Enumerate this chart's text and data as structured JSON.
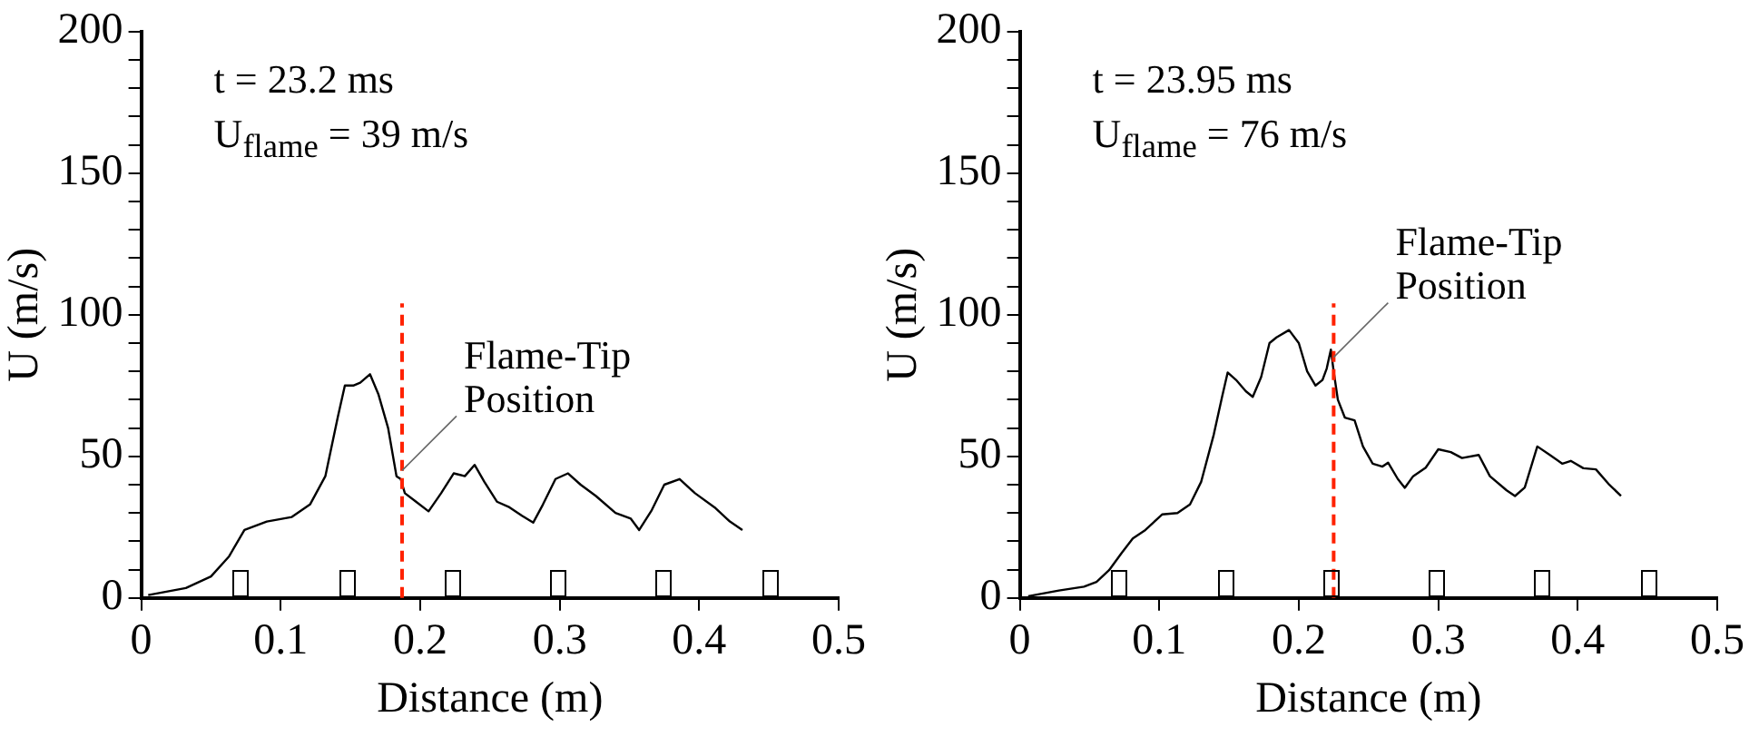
{
  "chart_data": [
    {
      "type": "line",
      "xlabel": "Distance (m)",
      "ylabel": "U (m/s)",
      "xlim": [
        0,
        0.5
      ],
      "xticks": [
        0,
        0.1,
        0.2,
        0.3,
        0.4,
        0.5
      ],
      "ylim": [
        0,
        200
      ],
      "yticks": [
        0,
        {
          "value": 10,
          "label": null
        },
        {
          "value": 20,
          "label": null
        },
        {
          "value": 30,
          "label": null
        },
        {
          "value": 40,
          "label": null
        },
        50,
        {
          "value": 60,
          "label": null
        },
        {
          "value": 70,
          "label": null
        },
        {
          "value": 80,
          "label": null
        },
        {
          "value": 90,
          "label": null
        },
        100,
        {
          "value": 110,
          "label": null
        },
        {
          "value": 120,
          "label": null
        },
        {
          "value": 130,
          "label": null
        },
        {
          "value": 140,
          "label": null
        },
        150,
        {
          "value": 160,
          "label": null
        },
        {
          "value": 170,
          "label": null
        },
        {
          "value": 180,
          "label": null
        },
        {
          "value": 190,
          "label": null
        },
        200
      ],
      "grid": false,
      "legend": false,
      "marker": "none",
      "line_style": "solid",
      "annotations": [
        "t = 23.2 ms",
        "U$_{flame}$ = 39 m/s",
        {
          "text": "Flame-Tip Position",
          "x": 0.187,
          "y": 45
        }
      ],
      "ref_lines": [
        {
          "axis": "x",
          "value": 0.187,
          "color": "#ff2200",
          "line_style": "dashed"
        }
      ],
      "series": [
        {
          "color": "#000000",
          "x": [
            0.005,
            0.032,
            0.05,
            0.063,
            0.074,
            0.09,
            0.108,
            0.121,
            0.132,
            0.141,
            0.146,
            0.152,
            0.157,
            0.164,
            0.17,
            0.177,
            0.183,
            0.186,
            0.189,
            0.197,
            0.206,
            0.215,
            0.224,
            0.232,
            0.239,
            0.246,
            0.255,
            0.264,
            0.273,
            0.281,
            0.288,
            0.297,
            0.306,
            0.315,
            0.326,
            0.34,
            0.351,
            0.357,
            0.366,
            0.375,
            0.386,
            0.397,
            0.411,
            0.422,
            0.431
          ],
          "values": [
            1,
            3.5,
            7.6,
            14.7,
            24,
            27,
            28.6,
            33,
            43,
            64,
            75,
            75,
            76,
            79,
            72,
            60,
            43,
            42,
            37,
            34,
            30.6,
            37,
            44,
            43,
            47,
            41,
            34,
            32,
            29,
            26.6,
            33,
            42,
            44,
            40,
            36,
            30,
            28,
            24,
            31,
            40,
            42,
            37,
            32,
            27,
            24
          ]
        }
      ]
    },
    {
      "type": "line",
      "xlabel": "Distance (m)",
      "ylabel": "U (m/s)",
      "xlim": [
        0,
        0.5
      ],
      "xticks": [
        0,
        0.1,
        0.2,
        0.3,
        0.4,
        0.5
      ],
      "ylim": [
        0,
        200
      ],
      "yticks": [
        0,
        {
          "value": 10,
          "label": null
        },
        {
          "value": 20,
          "label": null
        },
        {
          "value": 30,
          "label": null
        },
        {
          "value": 40,
          "label": null
        },
        50,
        {
          "value": 60,
          "label": null
        },
        {
          "value": 70,
          "label": null
        },
        {
          "value": 80,
          "label": null
        },
        {
          "value": 90,
          "label": null
        },
        100,
        {
          "value": 110,
          "label": null
        },
        {
          "value": 120,
          "label": null
        },
        {
          "value": 130,
          "label": null
        },
        {
          "value": 140,
          "label": null
        },
        150,
        {
          "value": 160,
          "label": null
        },
        {
          "value": 170,
          "label": null
        },
        {
          "value": 180,
          "label": null
        },
        {
          "value": 190,
          "label": null
        },
        200
      ],
      "grid": false,
      "legend": false,
      "marker": "none",
      "line_style": "solid",
      "annotations": [
        "t = 23.95 ms",
        "U$_{flame}$ = 76 m/s",
        {
          "text": "Flame-Tip Position",
          "x": 0.225,
          "y": 85
        }
      ],
      "ref_lines": [
        {
          "axis": "x",
          "value": 0.225,
          "color": "#ff2200",
          "line_style": "dashed"
        }
      ],
      "series": [
        {
          "color": "#000000",
          "x": [
            0.006,
            0.028,
            0.046,
            0.055,
            0.064,
            0.073,
            0.081,
            0.09,
            0.102,
            0.113,
            0.122,
            0.13,
            0.139,
            0.145,
            0.149,
            0.155,
            0.162,
            0.167,
            0.173,
            0.179,
            0.184,
            0.193,
            0.2,
            0.206,
            0.212,
            0.217,
            0.22,
            0.223,
            0.225,
            0.228,
            0.233,
            0.24,
            0.246,
            0.253,
            0.26,
            0.264,
            0.271,
            0.276,
            0.282,
            0.291,
            0.3,
            0.309,
            0.317,
            0.329,
            0.337,
            0.349,
            0.355,
            0.362,
            0.371,
            0.38,
            0.389,
            0.395,
            0.404,
            0.413,
            0.422,
            0.431
          ],
          "values": [
            0.6,
            2.6,
            4,
            5.7,
            9.8,
            15.9,
            21,
            24,
            29.5,
            30,
            33,
            41,
            57.6,
            71,
            79.6,
            77,
            73,
            71,
            78,
            90,
            92,
            94.6,
            90,
            80,
            75,
            77,
            81,
            87.7,
            80,
            70,
            63.7,
            62.7,
            53.5,
            47.4,
            46.4,
            47.8,
            42,
            38.9,
            43,
            46,
            52.5,
            51.5,
            49.4,
            50.5,
            43,
            38,
            36,
            39,
            53.5,
            50.5,
            47.4,
            48.4,
            45.8,
            45.4,
            40.3,
            36
          ]
        }
      ]
    }
  ]
}
